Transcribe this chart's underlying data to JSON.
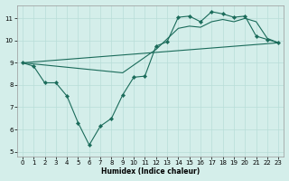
{
  "xlabel": "Humidex (Indice chaleur)",
  "bg_color": "#d4eeea",
  "line_color": "#1a6b5a",
  "grid_color": "#b8ddd8",
  "xlim": [
    -0.5,
    23.5
  ],
  "ylim": [
    4.8,
    11.6
  ],
  "xticks": [
    0,
    1,
    2,
    3,
    4,
    5,
    6,
    7,
    8,
    9,
    10,
    11,
    12,
    13,
    14,
    15,
    16,
    17,
    18,
    19,
    20,
    21,
    22,
    23
  ],
  "yticks": [
    5,
    6,
    7,
    8,
    9,
    10,
    11
  ],
  "line1_x": [
    0,
    1,
    2,
    3,
    4,
    5,
    6,
    7,
    8,
    9,
    10,
    11,
    12,
    13,
    14,
    15,
    16,
    17,
    18,
    19,
    20,
    21,
    22,
    23
  ],
  "line1_y": [
    9.0,
    8.85,
    8.1,
    8.1,
    7.5,
    6.3,
    5.3,
    6.15,
    6.5,
    7.55,
    8.35,
    8.4,
    9.75,
    9.95,
    11.05,
    11.1,
    10.85,
    11.3,
    11.2,
    11.05,
    11.1,
    10.2,
    10.05,
    9.9
  ],
  "line2_x": [
    0,
    23
  ],
  "line2_y": [
    9.0,
    9.9
  ],
  "line3_x": [
    0,
    9,
    12,
    14,
    15,
    16,
    17,
    18,
    19,
    20,
    21,
    22,
    23
  ],
  "line3_y": [
    9.0,
    8.55,
    9.6,
    10.55,
    10.65,
    10.6,
    10.85,
    10.95,
    10.85,
    11.0,
    10.85,
    10.1,
    9.9
  ]
}
